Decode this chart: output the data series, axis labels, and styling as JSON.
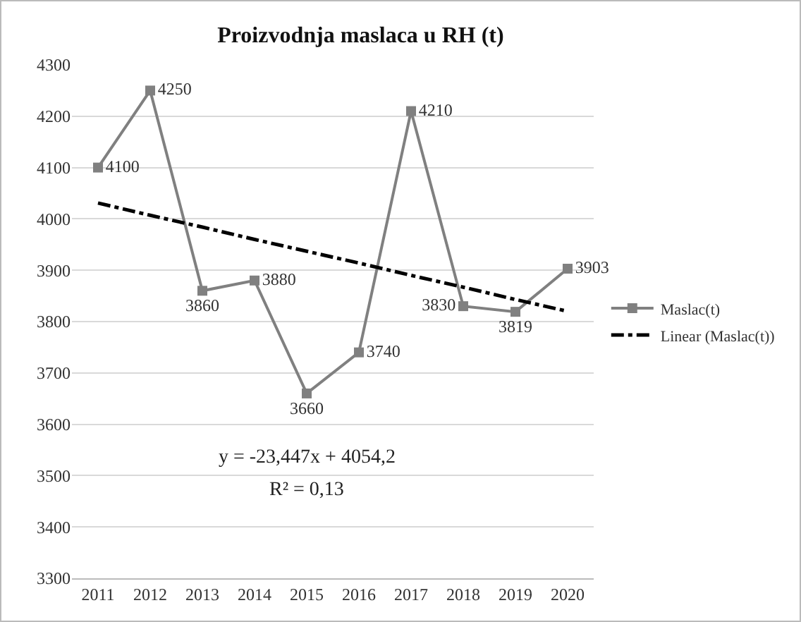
{
  "chart_data": {
    "type": "line",
    "title": "Proizvodnja maslaca u RH (t)",
    "categories": [
      "2011",
      "2012",
      "2013",
      "2014",
      "2015",
      "2016",
      "2017",
      "2018",
      "2019",
      "2020"
    ],
    "series": [
      {
        "name": "Maslac(t)",
        "color": "#808080",
        "marker": "square",
        "line_style": "solid",
        "values": [
          4100,
          4250,
          3860,
          3880,
          3660,
          3740,
          4210,
          3830,
          3819,
          3903
        ],
        "value_labels": [
          "4100",
          "4250",
          "3860",
          "3880",
          "3660",
          "3740",
          "4210",
          "3830",
          "3819",
          "3903"
        ]
      },
      {
        "name": "Linear (Maslac(t))",
        "type": "line",
        "color": "#000000",
        "marker": "none",
        "line_style": "dashed",
        "values": [
          4031,
          4007,
          3984,
          3960,
          3937,
          3914,
          3890,
          3867,
          3843,
          3820
        ]
      }
    ],
    "ylim": [
      3300,
      4300
    ],
    "yticks": [
      3300,
      3400,
      3500,
      3600,
      3700,
      3800,
      3900,
      4000,
      4100,
      4200,
      4300
    ],
    "grid": "y",
    "legend": "right",
    "annotations": [
      "y = -23,447x + 4054,2",
      "R² = 0,13"
    ]
  }
}
